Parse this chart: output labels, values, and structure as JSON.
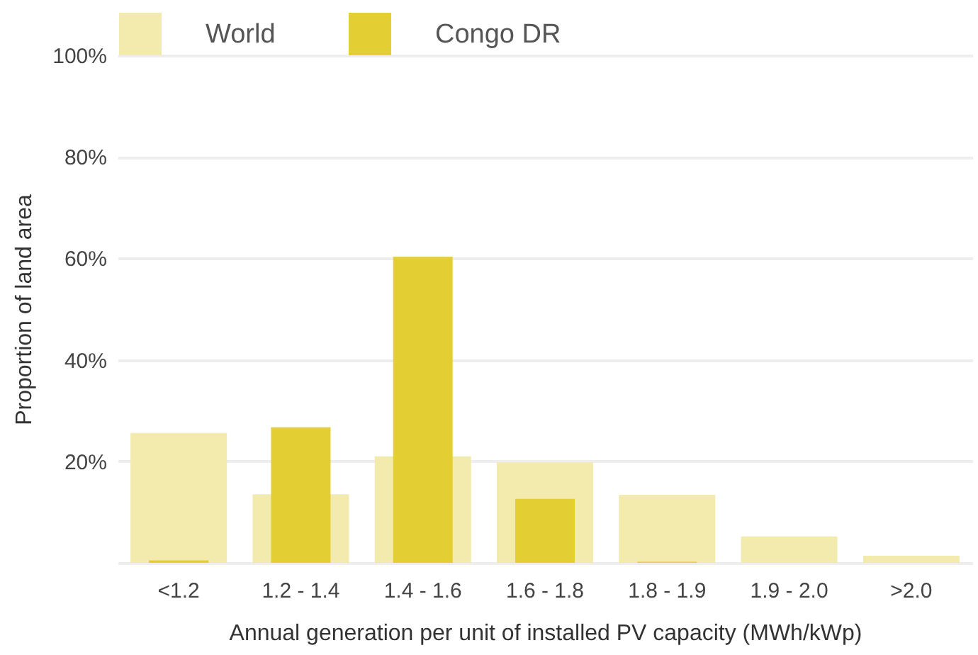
{
  "chart_data": {
    "type": "bar",
    "xlabel": "Annual generation per unit of installed PV capacity (MWh/kWp)",
    "ylabel": "Proportion of land area",
    "categories": [
      "<1.2",
      "1.2 - 1.4",
      "1.4 - 1.6",
      "1.6 - 1.8",
      "1.8 - 1.9",
      "1.9 - 2.0",
      ">2.0"
    ],
    "series": [
      {
        "name": "World",
        "color": "#f3eaae",
        "values": [
          25.6,
          13.5,
          21,
          19.8,
          13.4,
          5.2,
          1.4
        ]
      },
      {
        "name": "Congo DR",
        "color": "#e3cf33",
        "values": [
          0.5,
          26.7,
          60.3,
          12.6,
          0.2,
          0,
          0
        ]
      }
    ],
    "ylim": [
      0,
      100
    ],
    "yticks": [
      {
        "value": 0,
        "label": null
      },
      {
        "value": 20,
        "label": "20%"
      },
      {
        "value": 40,
        "label": "40%"
      },
      {
        "value": 60,
        "label": "60%"
      },
      {
        "value": 80,
        "label": "80%"
      },
      {
        "value": 100,
        "label": "100%"
      }
    ],
    "grid": "y",
    "legend": "top"
  }
}
